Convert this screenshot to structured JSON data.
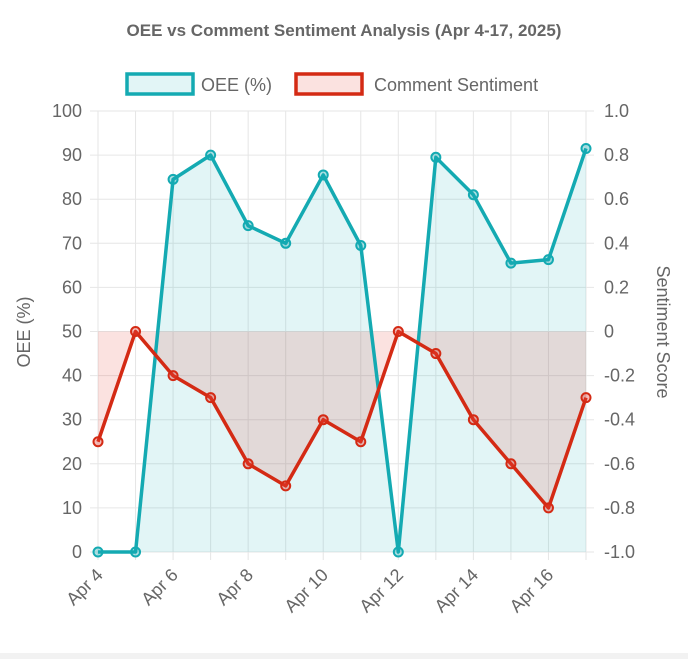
{
  "chart_data": {
    "type": "line",
    "title": "OEE vs Comment Sentiment Analysis (Apr 4-17, 2025)",
    "x": [
      "Apr 4",
      "Apr 5",
      "Apr 6",
      "Apr 7",
      "Apr 8",
      "Apr 9",
      "Apr 10",
      "Apr 11",
      "Apr 12",
      "Apr 13",
      "Apr 14",
      "Apr 15",
      "Apr 16",
      "Apr 17"
    ],
    "x_tick_labels": [
      "Apr 4",
      "Apr 6",
      "Apr 8",
      "Apr 10",
      "Apr 12",
      "Apr 14",
      "Apr 16"
    ],
    "y_left": {
      "label": "OEE (%)",
      "range": [
        0,
        100
      ],
      "ticks": [
        "0",
        "10",
        "20",
        "30",
        "40",
        "50",
        "60",
        "70",
        "80",
        "90",
        "100"
      ]
    },
    "y_right": {
      "label": "Sentiment Score",
      "range": [
        -1.0,
        1.0
      ],
      "ticks": [
        "-1.0",
        "-0.8",
        "-0.6",
        "-0.4",
        "-0.2",
        "0",
        "0.2",
        "0.4",
        "0.6",
        "0.8",
        "1.0"
      ]
    },
    "grid": true,
    "legend_position": "top",
    "series": [
      {
        "name": "OEE (%)",
        "axis": "left",
        "color": "#14aab2",
        "fill": "rgba(20,170,178,0.12)",
        "values": [
          0,
          0,
          84.5,
          90,
          74,
          70,
          85.5,
          69.5,
          0,
          89.5,
          81,
          65.5,
          66.3,
          91.5
        ]
      },
      {
        "name": "Comment Sentiment",
        "axis": "right",
        "color": "#d42a14",
        "fill": "rgba(230,60,50,0.15)",
        "values": [
          -0.5,
          0,
          -0.2,
          -0.3,
          -0.6,
          -0.7,
          -0.4,
          -0.5,
          0,
          -0.1,
          -0.4,
          -0.6,
          -0.8,
          -0.3
        ]
      }
    ]
  }
}
